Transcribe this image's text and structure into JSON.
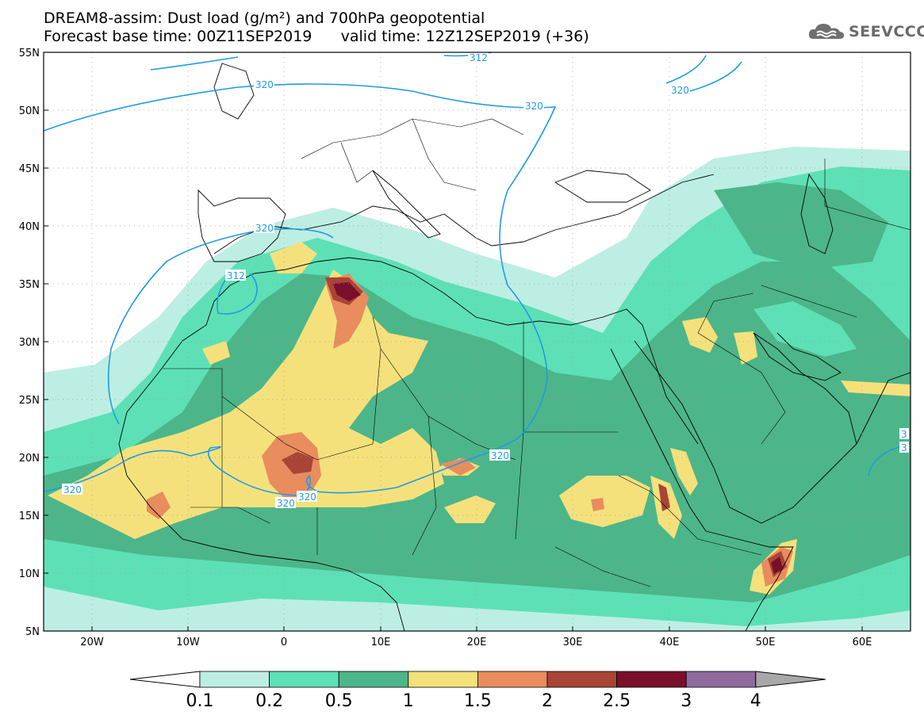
{
  "title": {
    "line1": "DREAM8-assim: Dust load (g/m²) and 700hPa geopotential",
    "line2_base": "Forecast base time: 00Z11SEP2019",
    "line2_valid": "valid time: 12Z12SEP2019 (+36)"
  },
  "logo": {
    "text": "SEEVCCC",
    "icon": "cloud-icon"
  },
  "map": {
    "lon_range": [
      -25,
      65
    ],
    "lat_range": [
      5,
      55
    ],
    "lat_ticks": [
      "55N",
      "50N",
      "45N",
      "40N",
      "35N",
      "30N",
      "25N",
      "20N",
      "15N",
      "10N",
      "5N"
    ],
    "lon_ticks": [
      "20W",
      "10W",
      "0",
      "10E",
      "20E",
      "30E",
      "40E",
      "50E",
      "60E"
    ],
    "contour_labels": [
      "320",
      "320",
      "320",
      "320",
      "320",
      "320",
      "312",
      "312",
      "320",
      "320",
      "3",
      "3"
    ],
    "contour_color": "#1f9be6"
  },
  "colorbar": {
    "labels": [
      "0.1",
      "0.2",
      "0.5",
      "1",
      "1.5",
      "2",
      "2.5",
      "3",
      "4"
    ],
    "colors": [
      "#bdeee4",
      "#5de0b5",
      "#4db58a",
      "#f4e17c",
      "#e98c5e",
      "#a94436",
      "#7a0f2b",
      "#8f6a9e"
    ],
    "under_color": "#ffffff",
    "over_color": "#a8a8a8"
  }
}
